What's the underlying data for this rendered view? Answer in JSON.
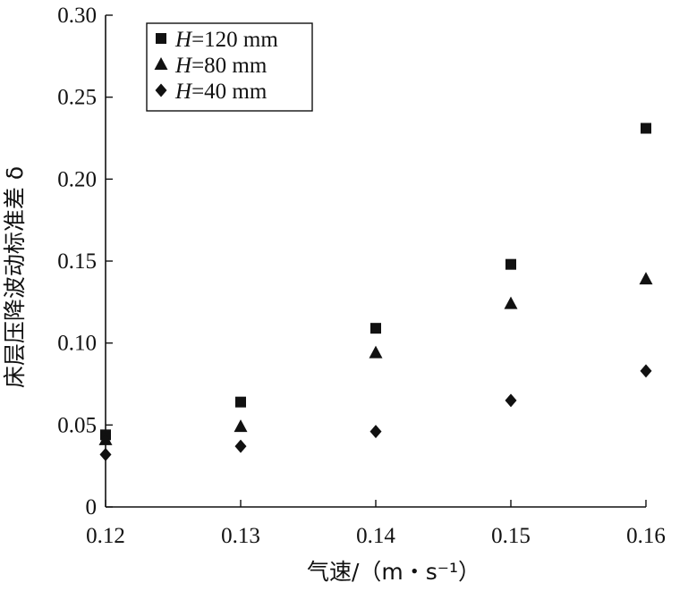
{
  "chart_data": {
    "type": "scatter",
    "title": "",
    "xlabel": "气速/（m・s⁻¹）",
    "ylabel": "床层压降波动标准差 δ",
    "xlim": [
      0.12,
      0.16
    ],
    "ylim": [
      0,
      0.3
    ],
    "x_ticks": [
      "0.12",
      "0.13",
      "0.14",
      "0.15",
      "0.16"
    ],
    "y_ticks": [
      "0",
      "0.05",
      "0.10",
      "0.15",
      "0.20",
      "0.25",
      "0.30"
    ],
    "x": [
      0.12,
      0.13,
      0.14,
      0.15,
      0.16
    ],
    "grid": false,
    "legend_position": "top-left",
    "series": [
      {
        "name": "H=120 mm",
        "var": "H",
        "rest": "=120 mm",
        "marker": "square",
        "values": [
          0.044,
          0.064,
          0.109,
          0.148,
          0.231
        ]
      },
      {
        "name": "H=80 mm",
        "var": "H",
        "rest": "=80 mm",
        "marker": "triangle",
        "values": [
          0.041,
          0.049,
          0.094,
          0.124,
          0.139
        ]
      },
      {
        "name": "H=40 mm",
        "var": "H",
        "rest": "=40 mm",
        "marker": "diamond",
        "values": [
          0.032,
          0.037,
          0.046,
          0.065,
          0.083
        ]
      }
    ],
    "colors": {
      "marker": "#111111",
      "axis": "#111111"
    }
  }
}
